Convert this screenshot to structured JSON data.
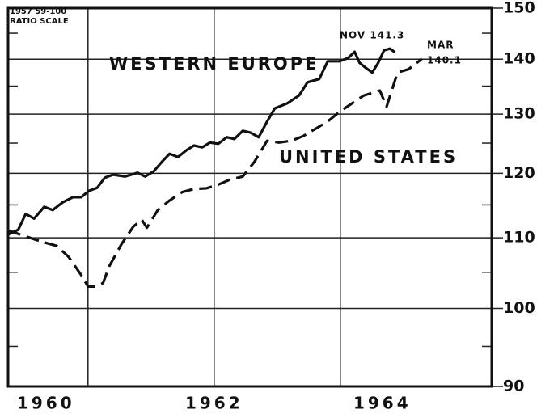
{
  "chart_data": {
    "type": "line",
    "subtitle": "1957 59-100",
    "axis_note": "RATIO SCALE",
    "log_scale": true,
    "grid": true,
    "xlim": [
      1960.05,
      1965.8
    ],
    "xticks": [
      {
        "value": 1960.5,
        "label": "1960"
      },
      {
        "value": 1962.5,
        "label": "1962"
      },
      {
        "value": 1964.5,
        "label": "1964"
      }
    ],
    "xgrid": [
      1961,
      1962.5,
      1964
    ],
    "ylim": [
      90,
      150
    ],
    "yticks": [
      90,
      100,
      110,
      120,
      130,
      140,
      150
    ],
    "yminorticks": [
      95,
      105,
      115,
      125,
      135,
      145
    ],
    "annotations": [
      "NOV 141.3",
      "MAR",
      "140.1"
    ],
    "series": [
      {
        "name": "WESTERN EUROPE",
        "color": "#111111",
        "style": "solid",
        "x": [
          1960.05,
          1960.17,
          1960.26,
          1960.36,
          1960.48,
          1960.58,
          1960.7,
          1960.82,
          1960.92,
          1961.01,
          1961.11,
          1961.2,
          1961.3,
          1961.44,
          1961.59,
          1961.68,
          1961.78,
          1961.88,
          1961.97,
          1962.07,
          1962.17,
          1962.26,
          1962.36,
          1962.45,
          1962.55,
          1962.65,
          1962.74,
          1962.84,
          1962.93,
          1963.03,
          1963.13,
          1963.22,
          1963.37,
          1963.51,
          1963.61,
          1963.75,
          1963.85,
          1963.99,
          1964.09,
          1964.17,
          1964.23,
          1964.3,
          1964.38,
          1964.45,
          1964.52,
          1964.59,
          1964.65
        ],
        "values": [
          110.5,
          111.2,
          113.6,
          112.9,
          114.7,
          114.2,
          115.4,
          116.2,
          116.2,
          117.2,
          117.7,
          119.3,
          119.8,
          119.5,
          120.1,
          119.5,
          120.3,
          121.9,
          123.2,
          122.7,
          123.8,
          124.6,
          124.3,
          125.1,
          124.9,
          126.0,
          125.7,
          127.1,
          126.8,
          126.0,
          128.7,
          131.0,
          131.9,
          133.3,
          135.7,
          136.3,
          139.6,
          139.6,
          140.2,
          141.4,
          139.3,
          138.4,
          137.5,
          139.3,
          141.7,
          142.0,
          141.3
        ]
      },
      {
        "name": "UNITED STATES",
        "color": "#111111",
        "style": "dashed",
        "x": [
          1960.05,
          1960.24,
          1960.43,
          1960.63,
          1960.77,
          1960.92,
          1961.0,
          1961.09,
          1961.18,
          1961.25,
          1961.4,
          1961.54,
          1961.64,
          1961.7,
          1961.83,
          1961.97,
          1962.12,
          1962.26,
          1962.41,
          1962.55,
          1962.69,
          1962.84,
          1962.98,
          1963.13,
          1963.27,
          1963.42,
          1963.56,
          1963.7,
          1963.85,
          1963.99,
          1964.14,
          1964.28,
          1964.47,
          1964.55,
          1964.68,
          1964.81,
          1964.91,
          1964.97
        ],
        "values": [
          111.1,
          110.3,
          109.5,
          108.8,
          107.2,
          104.6,
          103.0,
          103.0,
          103.5,
          105.8,
          109.1,
          111.7,
          112.7,
          111.5,
          114.2,
          115.7,
          117.0,
          117.5,
          117.6,
          118.2,
          119.0,
          119.5,
          121.9,
          125.4,
          125.1,
          125.4,
          126.2,
          127.4,
          128.7,
          130.4,
          131.9,
          133.3,
          134.2,
          131.3,
          137.5,
          138.1,
          139.3,
          140.1
        ]
      }
    ]
  }
}
